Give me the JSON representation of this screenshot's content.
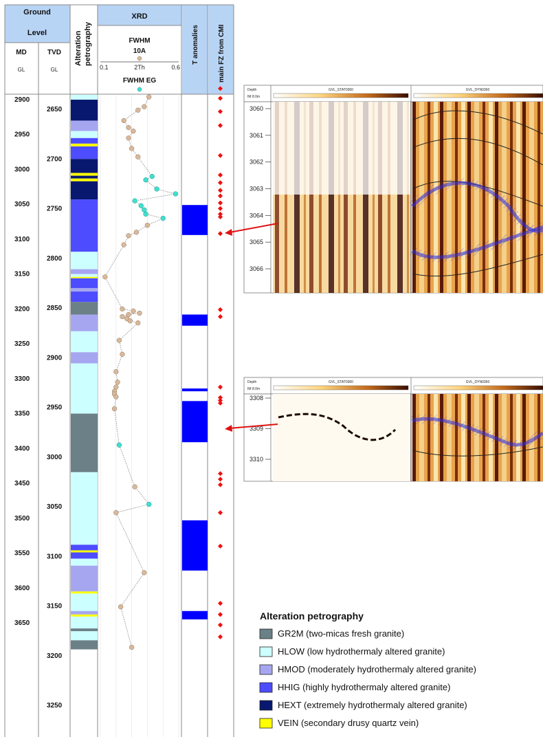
{
  "header": {
    "ground_level": [
      "Ground",
      "Level"
    ],
    "md": "MD",
    "tvd": "TVD",
    "md_unit": "GL",
    "tvd_unit": "GL",
    "alteration": [
      "Alteration",
      "petrography"
    ],
    "xrd": "XRD",
    "fwhm": "FWHM",
    "fwhm_sub": "10A",
    "scale_min": "0.1",
    "scale_mid": "2Th",
    "scale_max": "0.6",
    "fwhm_eg": "FWHM EG",
    "t_anomalies": "T anomalies",
    "main_fz": "main FZ from CMI"
  },
  "md_ticks": [
    "2900",
    "2950",
    "3000",
    "3050",
    "3100",
    "3150",
    "3200",
    "3250",
    "3300",
    "3350",
    "3400",
    "3450",
    "3500",
    "3550",
    "3600",
    "3650"
  ],
  "tvd_ticks": [
    "2650",
    "2700",
    "2750",
    "2800",
    "2850",
    "2900",
    "2950",
    "3000",
    "3050",
    "3100",
    "3150",
    "3200",
    "3250"
  ],
  "colors": {
    "GR2M": "#6b8087",
    "HLOW": "#ccffff",
    "HMOD": "#a6a6f0",
    "HHIG": "#4d4dff",
    "HEXT": "#07186e",
    "VEIN": "#ffff00",
    "t_anomaly": "#0000ff",
    "fz_marker": "#ee1111",
    "fwhm10a_point": "#d9b99b",
    "fwhm_eg_point": "#40e0d0",
    "header_bg": "#b8d4f5"
  },
  "lithology": [
    {
      "top": 2893,
      "base": 2900,
      "type": "HLOW"
    },
    {
      "top": 2900,
      "base": 2930,
      "type": "HEXT"
    },
    {
      "top": 2930,
      "base": 2945,
      "type": "HMOD"
    },
    {
      "top": 2945,
      "base": 2955,
      "type": "HLOW"
    },
    {
      "top": 2955,
      "base": 2963,
      "type": "HHIG"
    },
    {
      "top": 2963,
      "base": 2967,
      "type": "VEIN"
    },
    {
      "top": 2967,
      "base": 2985,
      "type": "HHIG"
    },
    {
      "top": 2985,
      "base": 3005,
      "type": "HEXT"
    },
    {
      "top": 3005,
      "base": 3009,
      "type": "VEIN"
    },
    {
      "top": 3009,
      "base": 3013,
      "type": "HEXT"
    },
    {
      "top": 3013,
      "base": 3017,
      "type": "VEIN"
    },
    {
      "top": 3017,
      "base": 3043,
      "type": "HEXT"
    },
    {
      "top": 3043,
      "base": 3118,
      "type": "HHIG"
    },
    {
      "top": 3118,
      "base": 3143,
      "type": "HLOW"
    },
    {
      "top": 3143,
      "base": 3150,
      "type": "HMOD"
    },
    {
      "top": 3150,
      "base": 3154,
      "type": "HLOW"
    },
    {
      "top": 3154,
      "base": 3156,
      "type": "VEIN"
    },
    {
      "top": 3156,
      "base": 3170,
      "type": "HHIG"
    },
    {
      "top": 3170,
      "base": 3175,
      "type": "HMOD"
    },
    {
      "top": 3175,
      "base": 3190,
      "type": "HHIG"
    },
    {
      "top": 3190,
      "base": 3208,
      "type": "GR2M"
    },
    {
      "top": 3208,
      "base": 3232,
      "type": "HMOD"
    },
    {
      "top": 3232,
      "base": 3262,
      "type": "HLOW"
    },
    {
      "top": 3262,
      "base": 3278,
      "type": "HMOD"
    },
    {
      "top": 3278,
      "base": 3350,
      "type": "HLOW"
    },
    {
      "top": 3350,
      "base": 3434,
      "type": "GR2M"
    },
    {
      "top": 3434,
      "base": 3538,
      "type": "HLOW"
    },
    {
      "top": 3538,
      "base": 3546,
      "type": "HHIG"
    },
    {
      "top": 3546,
      "base": 3549,
      "type": "VEIN"
    },
    {
      "top": 3549,
      "base": 3558,
      "type": "HHIG"
    },
    {
      "top": 3558,
      "base": 3568,
      "type": "HLOW"
    },
    {
      "top": 3568,
      "base": 3605,
      "type": "HMOD"
    },
    {
      "top": 3605,
      "base": 3608,
      "type": "VEIN"
    },
    {
      "top": 3608,
      "base": 3633,
      "type": "HLOW"
    },
    {
      "top": 3633,
      "base": 3638,
      "type": "HMOD"
    },
    {
      "top": 3638,
      "base": 3641,
      "type": "VEIN"
    },
    {
      "top": 3641,
      "base": 3658,
      "type": "HLOW"
    },
    {
      "top": 3658,
      "base": 3662,
      "type": "GR2M"
    },
    {
      "top": 3662,
      "base": 3675,
      "type": "HLOW"
    },
    {
      "top": 3675,
      "base": 3688,
      "type": "GR2M"
    }
  ],
  "fwhm_points": [
    {
      "md": 2896,
      "v": 0.41,
      "t": "10A"
    },
    {
      "md": 2910,
      "v": 0.38,
      "t": "10A"
    },
    {
      "md": 2915,
      "v": 0.34,
      "t": "10A"
    },
    {
      "md": 2930,
      "v": 0.25,
      "t": "10A"
    },
    {
      "md": 2940,
      "v": 0.28,
      "t": "10A"
    },
    {
      "md": 2945,
      "v": 0.31,
      "t": "10A"
    },
    {
      "md": 2955,
      "v": 0.28,
      "t": "10A"
    },
    {
      "md": 2970,
      "v": 0.3,
      "t": "10A"
    },
    {
      "md": 2982,
      "v": 0.34,
      "t": "10A"
    },
    {
      "md": 3010,
      "v": 0.43,
      "t": "EG"
    },
    {
      "md": 3015,
      "v": 0.39,
      "t": "EG"
    },
    {
      "md": 3028,
      "v": 0.46,
      "t": "EG"
    },
    {
      "md": 3035,
      "v": 0.58,
      "t": "EG"
    },
    {
      "md": 3045,
      "v": 0.32,
      "t": "EG"
    },
    {
      "md": 3052,
      "v": 0.36,
      "t": "EG"
    },
    {
      "md": 3058,
      "v": 0.38,
      "t": "EG"
    },
    {
      "md": 3064,
      "v": 0.39,
      "t": "EG"
    },
    {
      "md": 3070,
      "v": 0.5,
      "t": "EG"
    },
    {
      "md": 3080,
      "v": 0.4,
      "t": "10A"
    },
    {
      "md": 3090,
      "v": 0.33,
      "t": "10A"
    },
    {
      "md": 3095,
      "v": 0.28,
      "t": "10A"
    },
    {
      "md": 3108,
      "v": 0.25,
      "t": "10A"
    },
    {
      "md": 3154,
      "v": 0.13,
      "t": "10A"
    },
    {
      "md": 3200,
      "v": 0.24,
      "t": "10A"
    },
    {
      "md": 3203,
      "v": 0.31,
      "t": "10A"
    },
    {
      "md": 3206,
      "v": 0.35,
      "t": "10A"
    },
    {
      "md": 3208,
      "v": 0.28,
      "t": "10A"
    },
    {
      "md": 3211,
      "v": 0.24,
      "t": "10A"
    },
    {
      "md": 3214,
      "v": 0.27,
      "t": "10A"
    },
    {
      "md": 3217,
      "v": 0.29,
      "t": "10A"
    },
    {
      "md": 3220,
      "v": 0.34,
      "t": "10A"
    },
    {
      "md": 3245,
      "v": 0.22,
      "t": "10A"
    },
    {
      "md": 3265,
      "v": 0.24,
      "t": "10A"
    },
    {
      "md": 3290,
      "v": 0.2,
      "t": "10A"
    },
    {
      "md": 3305,
      "v": 0.21,
      "t": "10A"
    },
    {
      "md": 3312,
      "v": 0.2,
      "t": "10A"
    },
    {
      "md": 3318,
      "v": 0.19,
      "t": "10A"
    },
    {
      "md": 3322,
      "v": 0.19,
      "t": "10A"
    },
    {
      "md": 3326,
      "v": 0.2,
      "t": "10A"
    },
    {
      "md": 3343,
      "v": 0.19,
      "t": "10A"
    },
    {
      "md": 3395,
      "v": 0.22,
      "t": "EG"
    },
    {
      "md": 3455,
      "v": 0.32,
      "t": "10A"
    },
    {
      "md": 3480,
      "v": 0.41,
      "t": "EG"
    },
    {
      "md": 3492,
      "v": 0.2,
      "t": "10A"
    },
    {
      "md": 3578,
      "v": 0.38,
      "t": "10A"
    },
    {
      "md": 3627,
      "v": 0.23,
      "t": "10A"
    },
    {
      "md": 3685,
      "v": 0.3,
      "t": "10A"
    }
  ],
  "t_anomalies": [
    {
      "top": 3051,
      "base": 3094
    },
    {
      "top": 3208,
      "base": 3224
    },
    {
      "top": 3314,
      "base": 3318
    },
    {
      "top": 3332,
      "base": 3391
    },
    {
      "top": 3503,
      "base": 3575
    },
    {
      "top": 3633,
      "base": 3645
    }
  ],
  "fz_markers": [
    2884,
    2898,
    2917,
    2937,
    2980,
    3008,
    3019,
    3030,
    3038,
    3048,
    3056,
    3064,
    3068,
    3092,
    3201,
    3211,
    3312,
    3327,
    3331,
    3335,
    3436,
    3444,
    3452,
    3492,
    3540,
    3622,
    3638,
    3653,
    3670
  ],
  "cmi_image_1": {
    "header_labels": [
      "Depth",
      "IM 8.0m",
      "GVL_STAT0360",
      "GVL_DYN0360"
    ],
    "depths": [
      "3060",
      "3061",
      "3062",
      "3063",
      "3064",
      "3065",
      "3066"
    ]
  },
  "cmi_image_2": {
    "header_labels": [
      "Depth",
      "IM 8.0m",
      "GVL_STAT0360",
      "GVL_DYN0360"
    ],
    "depths": [
      "3308",
      "3309",
      "3310"
    ]
  },
  "legend": {
    "title": "Alteration petrography",
    "items": [
      {
        "code": "GR2M",
        "label": "GR2M (two-micas fresh granite)"
      },
      {
        "code": "HLOW",
        "label": "HLOW (low hydrothermaly altered granite)"
      },
      {
        "code": "HMOD",
        "label": "HMOD (moderately hydrothermaly altered granite)"
      },
      {
        "code": "HHIG",
        "label": "HHIG (highly hydrothermaly altered granite)"
      },
      {
        "code": "HEXT",
        "label": "HEXT (extremely hydrothermaly altered granite)"
      },
      {
        "code": "VEIN",
        "label": "VEIN (secondary drusy quartz vein)"
      }
    ]
  }
}
